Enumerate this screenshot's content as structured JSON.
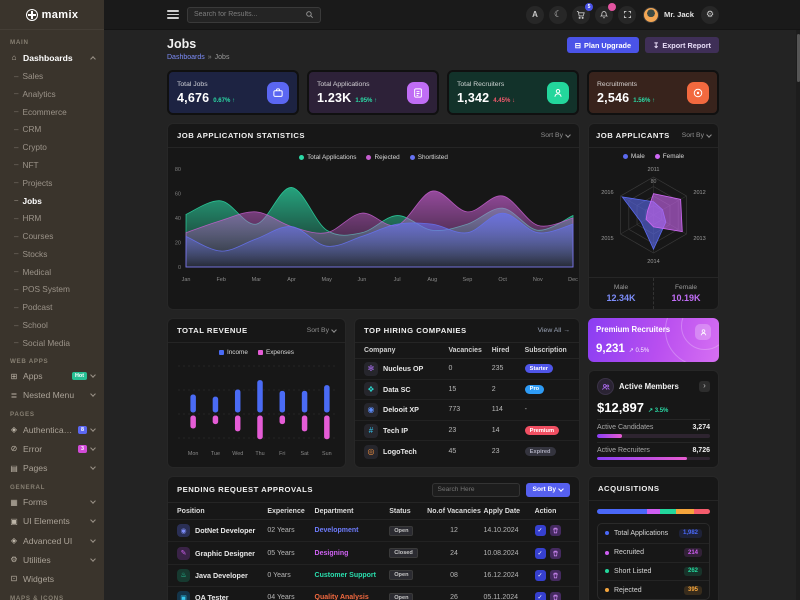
{
  "sidebar": {
    "logo": "mamix",
    "sections": [
      {
        "label": "MAIN",
        "items": [
          {
            "label": "Dashboards",
            "icon": "home-icon",
            "expanded": true,
            "active": true,
            "children": [
              {
                "label": "Sales"
              },
              {
                "label": "Analytics"
              },
              {
                "label": "Ecommerce"
              },
              {
                "label": "CRM"
              },
              {
                "label": "Crypto"
              },
              {
                "label": "NFT"
              },
              {
                "label": "Projects"
              },
              {
                "label": "Jobs",
                "active": true
              },
              {
                "label": "HRM"
              },
              {
                "label": "Courses"
              },
              {
                "label": "Stocks"
              },
              {
                "label": "Medical"
              },
              {
                "label": "POS System"
              },
              {
                "label": "Podcast"
              },
              {
                "label": "School"
              },
              {
                "label": "Social Media"
              }
            ]
          }
        ]
      },
      {
        "label": "WEB APPS",
        "items": [
          {
            "label": "Apps",
            "icon": "apps-icon",
            "badge": {
              "text": "Hot",
              "bg": "#26bf94"
            },
            "chevron": true
          },
          {
            "label": "Nested Menu",
            "icon": "nested-menu-icon",
            "chevron": true
          }
        ]
      },
      {
        "label": "PAGES",
        "items": [
          {
            "label": "Authentication",
            "icon": "lock-icon",
            "badge": {
              "text": "8",
              "bg": "#5b67f2"
            },
            "chevron": true
          },
          {
            "label": "Error",
            "icon": "error-icon",
            "badge": {
              "text": "3",
              "bg": "#d24bd8"
            },
            "chevron": true
          },
          {
            "label": "Pages",
            "icon": "pages-icon",
            "chevron": true
          }
        ]
      },
      {
        "label": "GENERAL",
        "items": [
          {
            "label": "Forms",
            "icon": "forms-icon",
            "chevron": true
          },
          {
            "label": "UI Elements",
            "icon": "ui-elements-icon",
            "chevron": true
          },
          {
            "label": "Advanced UI",
            "icon": "advanced-ui-icon",
            "chevron": true
          },
          {
            "label": "Utilities",
            "icon": "utilities-icon",
            "chevron": true
          },
          {
            "label": "Widgets",
            "icon": "widgets-icon"
          }
        ]
      },
      {
        "label": "MAPS & ICONS",
        "items": []
      }
    ]
  },
  "header": {
    "search_placeholder": "Search for Results...",
    "cart_badge": "5",
    "user_name": "Mr. Jack"
  },
  "page": {
    "title": "Jobs",
    "breadcrumb": {
      "parent": "Dashboards",
      "separator": "»",
      "current": "Jobs"
    },
    "actions": {
      "plan_upgrade": {
        "label": "Plan Upgrade",
        "bg": "#4a53e8"
      },
      "export_report": {
        "label": "Export Report",
        "bg": "#3f2f57"
      }
    }
  },
  "ui": {
    "sort_by": "Sort By",
    "view_all": "View All →"
  },
  "stats": {
    "up_color": "#2bd9a5",
    "down_color": "#f0596c",
    "cards": [
      {
        "label": "Total Jobs",
        "value": "4,676",
        "delta": "0.67%",
        "direction": "up",
        "card_bg": "#1d2342",
        "icon_bg": "#5b67f2",
        "icon": "briefcase-icon"
      },
      {
        "label": "Total Applications",
        "value": "1.23K",
        "delta": "1.95%",
        "direction": "up",
        "card_bg": "#2d2138",
        "icon_bg": "#c06df5",
        "icon": "file-icon"
      },
      {
        "label": "Total Recruiters",
        "value": "1,342",
        "delta": "4.45%",
        "direction": "down",
        "card_bg": "#12322a",
        "icon_bg": "#23d69c",
        "icon": "recruiter-icon"
      },
      {
        "label": "Recruitments",
        "value": "2,546",
        "delta": "1.56%",
        "direction": "up",
        "card_bg": "#38231c",
        "icon_bg": "#f2693f",
        "icon": "target-icon"
      }
    ]
  },
  "chart_data": [
    {
      "type": "area",
      "title": "JOB APPLICATION STATISTICS",
      "legend_position": "top",
      "grid": false,
      "x": [
        "Jan",
        "Feb",
        "Mar",
        "Apr",
        "May",
        "Jun",
        "Jul",
        "Aug",
        "Sep",
        "Oct",
        "Nov",
        "Dec"
      ],
      "ylim": [
        0,
        80
      ],
      "yticks": [
        0,
        20,
        40,
        60,
        80
      ],
      "series": [
        {
          "name": "Total Applications",
          "color": "#2bd9a5",
          "values": [
            43,
            54,
            35,
            65,
            30,
            28,
            42,
            30,
            35,
            48,
            30,
            42
          ]
        },
        {
          "name": "Rejected",
          "color": "#c55ecf",
          "values": [
            28,
            38,
            45,
            33,
            28,
            44,
            34,
            62,
            45,
            58,
            34,
            40
          ]
        },
        {
          "name": "Shortlisted",
          "color": "#6672f2",
          "values": [
            25,
            13,
            23,
            33,
            17,
            25,
            35,
            35,
            28,
            44,
            28,
            35
          ]
        }
      ]
    },
    {
      "type": "radar",
      "title": "JOB APPLICANTS",
      "categories": [
        "2011",
        "2012",
        "2013",
        "2014",
        "2015",
        "2016"
      ],
      "max": 80,
      "max_label": "80",
      "series": [
        {
          "name": "Male",
          "color": "#5b6af0",
          "values": [
            28,
            22,
            30,
            72,
            30,
            76
          ]
        },
        {
          "name": "Female",
          "color": "#cf68f5",
          "values": [
            45,
            66,
            70,
            25,
            18,
            15
          ]
        }
      ],
      "totals": [
        {
          "label": "Male",
          "value": "12.34K",
          "color": "#7c8cf8"
        },
        {
          "label": "Female",
          "value": "10.19K",
          "color": "#c06df5"
        }
      ]
    },
    {
      "type": "bar",
      "title": "TOTAL REVENUE",
      "layout": "diverging-from-center",
      "categories": [
        "Mon",
        "Tue",
        "Wed",
        "Thu",
        "Fri",
        "Sat",
        "Sun"
      ],
      "series": [
        {
          "name": "Income",
          "color": "#4a6bf5",
          "values": [
            25,
            22,
            32,
            45,
            30,
            30,
            38
          ]
        },
        {
          "name": "Expenses",
          "color": "#e55cd6",
          "values": [
            18,
            12,
            22,
            33,
            12,
            22,
            33
          ]
        }
      ]
    }
  ],
  "companies": {
    "title": "TOP HIRING COMPANIES",
    "columns": [
      "Company",
      "Vacancies",
      "Hired",
      "Subscription"
    ],
    "rows": [
      {
        "name": "Nucleus OP",
        "glyph": "✻",
        "glyph_color": "#a86df0",
        "vacancies": "0",
        "hired": "235",
        "subscription": "Starter",
        "badge_bg": "#4f55e8",
        "badge_color": "#ffffff"
      },
      {
        "name": "Data SC",
        "glyph": "❖",
        "glyph_color": "#2ad0c8",
        "vacancies": "15",
        "hired": "2",
        "subscription": "Pro",
        "badge_bg": "#2e9bf5",
        "badge_color": "#ffffff"
      },
      {
        "name": "Delooit XP",
        "glyph": "◉",
        "glyph_color": "#5b8af5",
        "vacancies": "773",
        "hired": "114",
        "subscription": "-",
        "badge_bg": "",
        "badge_color": ""
      },
      {
        "name": "Tech IP",
        "glyph": "#",
        "glyph_color": "#35c8f0",
        "vacancies": "23",
        "hired": "14",
        "subscription": "Premium",
        "badge_bg": "#f04f62",
        "badge_color": "#ffffff"
      },
      {
        "name": "LogoTech",
        "glyph": "◎",
        "glyph_color": "#f2913f",
        "vacancies": "45",
        "hired": "23",
        "subscription": "Expired",
        "badge_bg": "#34343e",
        "badge_color": "#aab"
      }
    ]
  },
  "premium": {
    "title": "Premium Recruiters",
    "value": "9,231",
    "delta": "0.5%",
    "trend": "↗"
  },
  "members": {
    "title": "Active Members",
    "value": "$12,897",
    "delta": "3.5%",
    "trend": "↗",
    "rows": [
      {
        "label": "Active Candidates",
        "value": "3,274",
        "pct": 22
      },
      {
        "label": "Active Recruiters",
        "value": "8,726",
        "pct": 80
      }
    ]
  },
  "pending": {
    "title": "PENDING REQUEST APPROVALS",
    "search_placeholder": "Search Here",
    "sort_label": "Sort By",
    "columns": [
      "Position",
      "Experience",
      "Department",
      "Status",
      "No.of Vacancies",
      "Apply Date",
      "Action"
    ],
    "rows": [
      {
        "position": "DotNet Developer",
        "glyph": "◉",
        "icon_bg": "#2a2f55",
        "icon_color": "#7c8cf8",
        "experience": "02 Years",
        "department": "Development",
        "dept_color": "#6d7bfa",
        "status": "Open",
        "vacancies": "12",
        "date": "14.10.2024"
      },
      {
        "position": "Graphic Designer",
        "glyph": "✎",
        "icon_bg": "#3a2347",
        "icon_color": "#cf62f2",
        "experience": "05 Years",
        "department": "Designing",
        "dept_color": "#cf62f2",
        "status": "Closed",
        "vacancies": "24",
        "date": "10.08.2024"
      },
      {
        "position": "Java Developer",
        "glyph": "♨",
        "icon_bg": "#173a30",
        "icon_color": "#2adfae",
        "experience": "0 Years",
        "department": "Customer Support",
        "dept_color": "#2adfae",
        "status": "Open",
        "vacancies": "08",
        "date": "16.12.2024"
      },
      {
        "position": "QA Tester",
        "glyph": "▣",
        "icon_bg": "#14354a",
        "icon_color": "#35c8f0",
        "experience": "04 Years",
        "department": "Quality Analysis",
        "dept_color": "#f2693f",
        "status": "Open",
        "vacancies": "26",
        "date": "05.11.2024"
      }
    ]
  },
  "acquisitions": {
    "title": "ACQUISITIONS",
    "segments": [
      {
        "color": "#4a68f8",
        "pct": 44
      },
      {
        "color": "#cf5ef2",
        "pct": 12
      },
      {
        "color": "#23d69c",
        "pct": 14
      },
      {
        "color": "#f5a53c",
        "pct": 16
      },
      {
        "color": "#f55c6c",
        "pct": 14
      }
    ],
    "items": [
      {
        "label": "Total Applications",
        "value": "1,982",
        "color": "#4a68f8"
      },
      {
        "label": "Recruited",
        "value": "214",
        "color": "#cf5ef2"
      },
      {
        "label": "Short Listed",
        "value": "262",
        "color": "#23d69c"
      },
      {
        "label": "Rejected",
        "value": "395",
        "color": "#f5a53c"
      }
    ]
  }
}
